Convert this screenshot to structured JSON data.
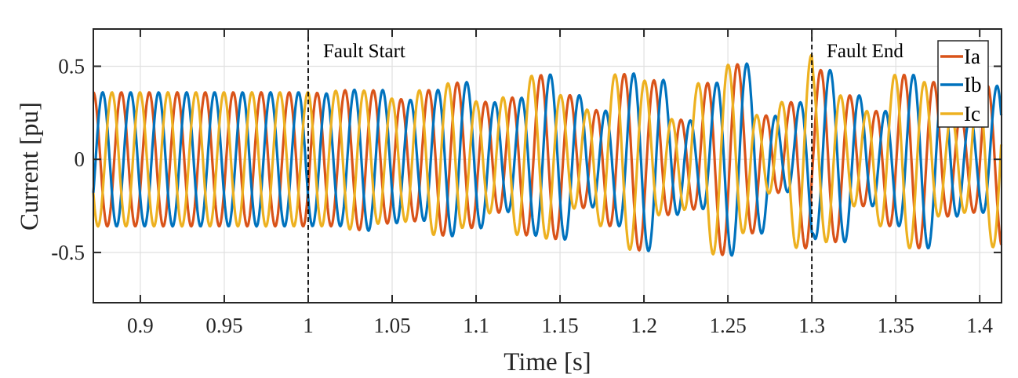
{
  "chart_data": {
    "type": "line",
    "title": "",
    "xlabel": "Time [s]",
    "ylabel": "Current [pu]",
    "xlim": [
      0.872,
      1.413
    ],
    "ylim": [
      -0.77,
      0.7
    ],
    "xticks": [
      0.9,
      0.95,
      1,
      1.05,
      1.1,
      1.15,
      1.2,
      1.25,
      1.3,
      1.35,
      1.4
    ],
    "xtick_labels": [
      "0.9",
      "0.95",
      "1",
      "1.05",
      "1.1",
      "1.15",
      "1.2",
      "1.25",
      "1.3",
      "1.35",
      "1.4"
    ],
    "yticks": [
      -0.5,
      0,
      0.5
    ],
    "ytick_labels": [
      "-0.5",
      "0",
      "0.5"
    ],
    "grid": true,
    "legend_position": "top-right",
    "annotations": [
      {
        "text": "Fault Start",
        "x": 1.0
      },
      {
        "text": "Fault End",
        "x": 1.3
      }
    ],
    "vlines": [
      1.0,
      1.3
    ],
    "model": {
      "fundamental_hz": 60,
      "fundamental_amplitude": 0.36,
      "phase_ref_time": 0.872,
      "oscillation_hz": 42,
      "oscillation_envelope": [
        [
          0.872,
          0
        ],
        [
          1.0,
          0
        ],
        [
          1.3,
          0.2
        ],
        [
          1.301,
          0.12
        ],
        [
          1.413,
          0.12
        ]
      ]
    },
    "series": [
      {
        "name": "Ia",
        "color": "#D95319",
        "phase_deg": 0,
        "peak_prefault": 0.36,
        "peak_fault_max": 0.55,
        "peak_postfault_max": 0.48
      },
      {
        "name": "Ib",
        "color": "#0072BD",
        "phase_deg": -120,
        "peak_prefault": 0.36,
        "peak_fault_max": 0.51,
        "peak_postfault_max": 0.49
      },
      {
        "name": "Ic",
        "color": "#EDB120",
        "phase_deg": 120,
        "peak_prefault": 0.36,
        "peak_fault_max": 0.46,
        "peak_postfault_max": 0.47
      }
    ]
  }
}
